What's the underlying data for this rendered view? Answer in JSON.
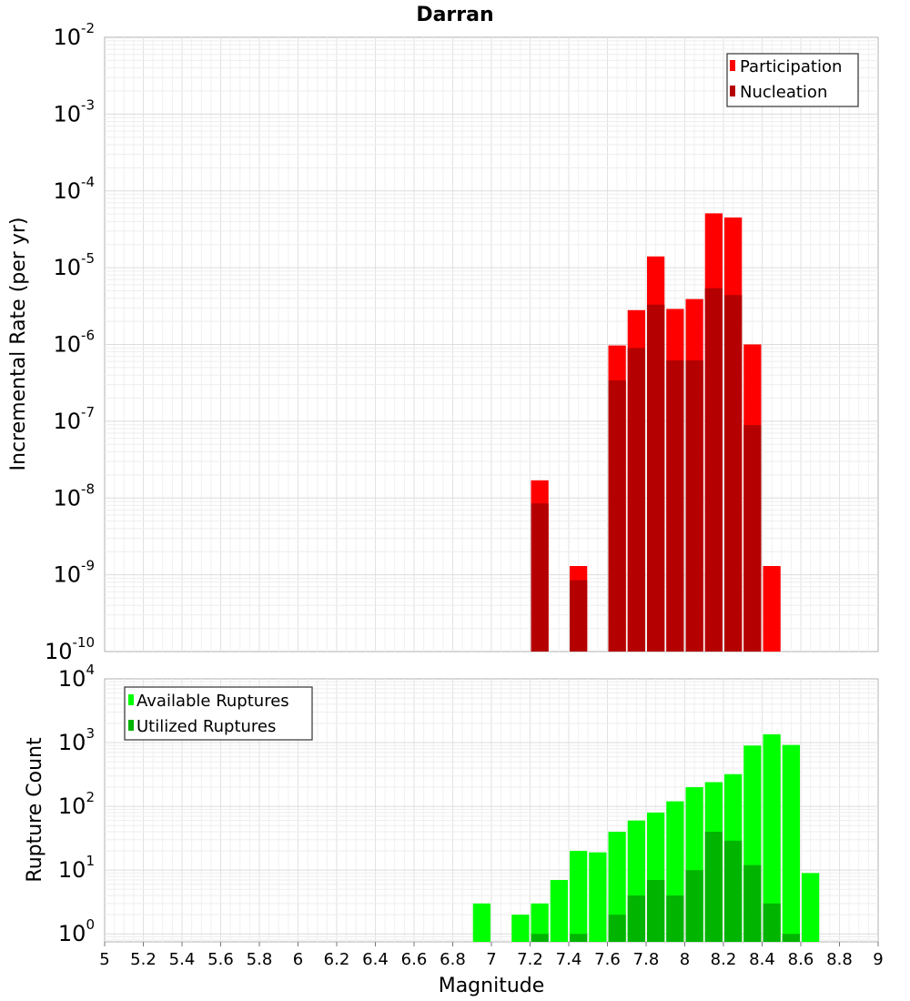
{
  "chart_data": [
    {
      "type": "bar",
      "title": "Darran",
      "xlabel": "",
      "ylabel": "Incremental Rate (per yr)",
      "xlim": [
        5,
        9
      ],
      "ylim": [
        1e-10,
        0.01
      ],
      "yscale": "log",
      "bar_width": 0.1,
      "grid": true,
      "legend_position": "top-right",
      "y_tick_exponents": [
        "-2",
        "-3",
        "-4",
        "-5",
        "-6",
        "-7",
        "-8",
        "-9",
        "-10"
      ],
      "y_tick_base": "10",
      "series": [
        {
          "name": "Participation",
          "color": "#ff0000",
          "x": [
            7.25,
            7.45,
            7.65,
            7.75,
            7.85,
            7.95,
            8.05,
            8.15,
            8.25,
            8.35,
            8.45
          ],
          "values": [
            1.7e-08,
            1.3e-09,
            9.7e-07,
            2.8e-06,
            1.4e-05,
            2.9e-06,
            3.9e-06,
            5.1e-05,
            4.5e-05,
            1e-06,
            1.3e-09
          ]
        },
        {
          "name": "Nucleation",
          "color": "#b40000",
          "x": [
            7.25,
            7.45,
            7.65,
            7.75,
            7.85,
            7.95,
            8.05,
            8.15,
            8.25,
            8.35
          ],
          "values": [
            8.5e-09,
            8.5e-10,
            3.4e-07,
            9e-07,
            3.3e-06,
            6.2e-07,
            6.2e-07,
            5.4e-06,
            4.4e-06,
            8.9e-08
          ]
        }
      ]
    },
    {
      "type": "bar",
      "title": "",
      "xlabel": "Magnitude",
      "ylabel": "Rupture Count",
      "xlim": [
        5,
        9
      ],
      "ylim": [
        0.75,
        10000
      ],
      "yscale": "log",
      "bar_width": 0.1,
      "grid": true,
      "legend_position": "top-left",
      "x_ticks": [
        "5",
        "5.2",
        "5.4",
        "5.6",
        "5.8",
        "6",
        "6.2",
        "6.4",
        "6.6",
        "6.8",
        "7",
        "7.2",
        "7.4",
        "7.6",
        "7.8",
        "8",
        "8.2",
        "8.4",
        "8.6",
        "8.8",
        "9"
      ],
      "y_tick_exponents": [
        "4",
        "3",
        "2",
        "1",
        "0"
      ],
      "y_tick_base": "10",
      "series": [
        {
          "name": "Available Ruptures",
          "color": "#00ff00",
          "x": [
            6.95,
            7.15,
            7.25,
            7.35,
            7.45,
            7.55,
            7.65,
            7.75,
            7.85,
            7.95,
            8.05,
            8.15,
            8.25,
            8.35,
            8.45,
            8.55,
            8.65
          ],
          "values": [
            3,
            2,
            3,
            7,
            20,
            19,
            40,
            60,
            80,
            120,
            200,
            240,
            320,
            900,
            1350,
            920,
            9
          ]
        },
        {
          "name": "Utilized Ruptures",
          "color": "#00b400",
          "x": [
            7.25,
            7.45,
            7.65,
            7.75,
            7.85,
            7.95,
            8.05,
            8.15,
            8.25,
            8.35,
            8.45,
            8.55
          ],
          "values": [
            1,
            1,
            2,
            4,
            7,
            4,
            10,
            40,
            29,
            12,
            3,
            1
          ]
        }
      ]
    }
  ]
}
